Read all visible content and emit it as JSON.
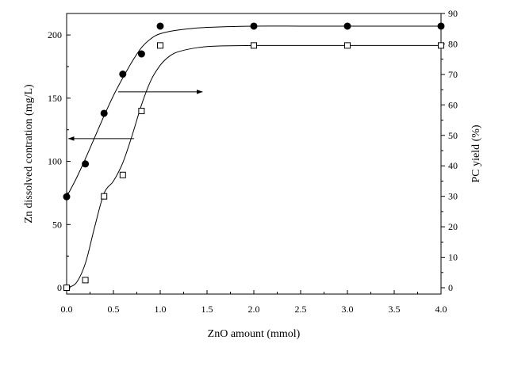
{
  "chart_data": {
    "type": "scatter",
    "xlabel": "ZnO amount (mmol)",
    "ylabel_left": "Zn dissolved contration (mg/L)",
    "ylabel_right": "PC yield (%)",
    "xlim": [
      0,
      4
    ],
    "ylim_left": [
      -5,
      217
    ],
    "ylim_right": [
      -2.08,
      90
    ],
    "x_ticks": [
      0.0,
      0.5,
      1.0,
      1.5,
      2.0,
      2.5,
      3.0,
      3.5,
      4.0
    ],
    "x_tick_labels": [
      "0.0",
      "0.5",
      "1.0",
      "1.5",
      "2.0",
      "2.5",
      "3.0",
      "3.5",
      "4.0"
    ],
    "y_left_ticks": [
      0,
      50,
      100,
      150,
      200
    ],
    "y_left_tick_labels": [
      "0",
      "50",
      "100",
      "150",
      "200"
    ],
    "y_right_ticks": [
      0,
      10,
      20,
      30,
      40,
      50,
      60,
      70,
      80,
      90
    ],
    "y_right_tick_labels": [
      "0",
      "10",
      "20",
      "30",
      "40",
      "50",
      "60",
      "70",
      "80",
      "90"
    ],
    "grid": false,
    "series": [
      {
        "axis": "left",
        "marker": "filled-circle",
        "x": [
          0.0,
          0.2,
          0.4,
          0.6,
          0.8,
          1.0,
          2.0,
          3.0,
          4.0
        ],
        "y": [
          72,
          98,
          138,
          169,
          185,
          207,
          207,
          207,
          207
        ],
        "fit_curve": {
          "x": [
            0.0,
            0.1,
            0.2,
            0.3,
            0.4,
            0.5,
            0.6,
            0.7,
            0.8,
            0.9,
            1.0,
            1.2,
            1.5,
            2.0,
            2.5,
            3.0,
            3.5,
            4.0
          ],
          "y": [
            72,
            86,
            102,
            119,
            136,
            152,
            166,
            179,
            190,
            197,
            201,
            204,
            206,
            207,
            207,
            207,
            207,
            207
          ]
        },
        "arrow_direction": "left"
      },
      {
        "axis": "right",
        "marker": "open-square",
        "x": [
          0.0,
          0.2,
          0.4,
          0.6,
          0.8,
          1.0,
          2.0,
          3.0,
          4.0
        ],
        "y": [
          0,
          2.5,
          30,
          37,
          58,
          79.5,
          79.5,
          79.5,
          79.5
        ],
        "fit_curve": {
          "x": [
            0.0,
            0.1,
            0.2,
            0.3,
            0.4,
            0.5,
            0.6,
            0.7,
            0.8,
            0.9,
            1.0,
            1.1,
            1.2,
            1.4,
            1.6,
            2.0,
            2.5,
            3.0,
            3.5,
            4.0
          ],
          "y": [
            0,
            1.5,
            8,
            20,
            31,
            35,
            41,
            50,
            60,
            68,
            73,
            76,
            77.5,
            78.8,
            79.3,
            79.5,
            79.5,
            79.5,
            79.5,
            79.5
          ]
        },
        "arrow_direction": "right"
      }
    ]
  }
}
